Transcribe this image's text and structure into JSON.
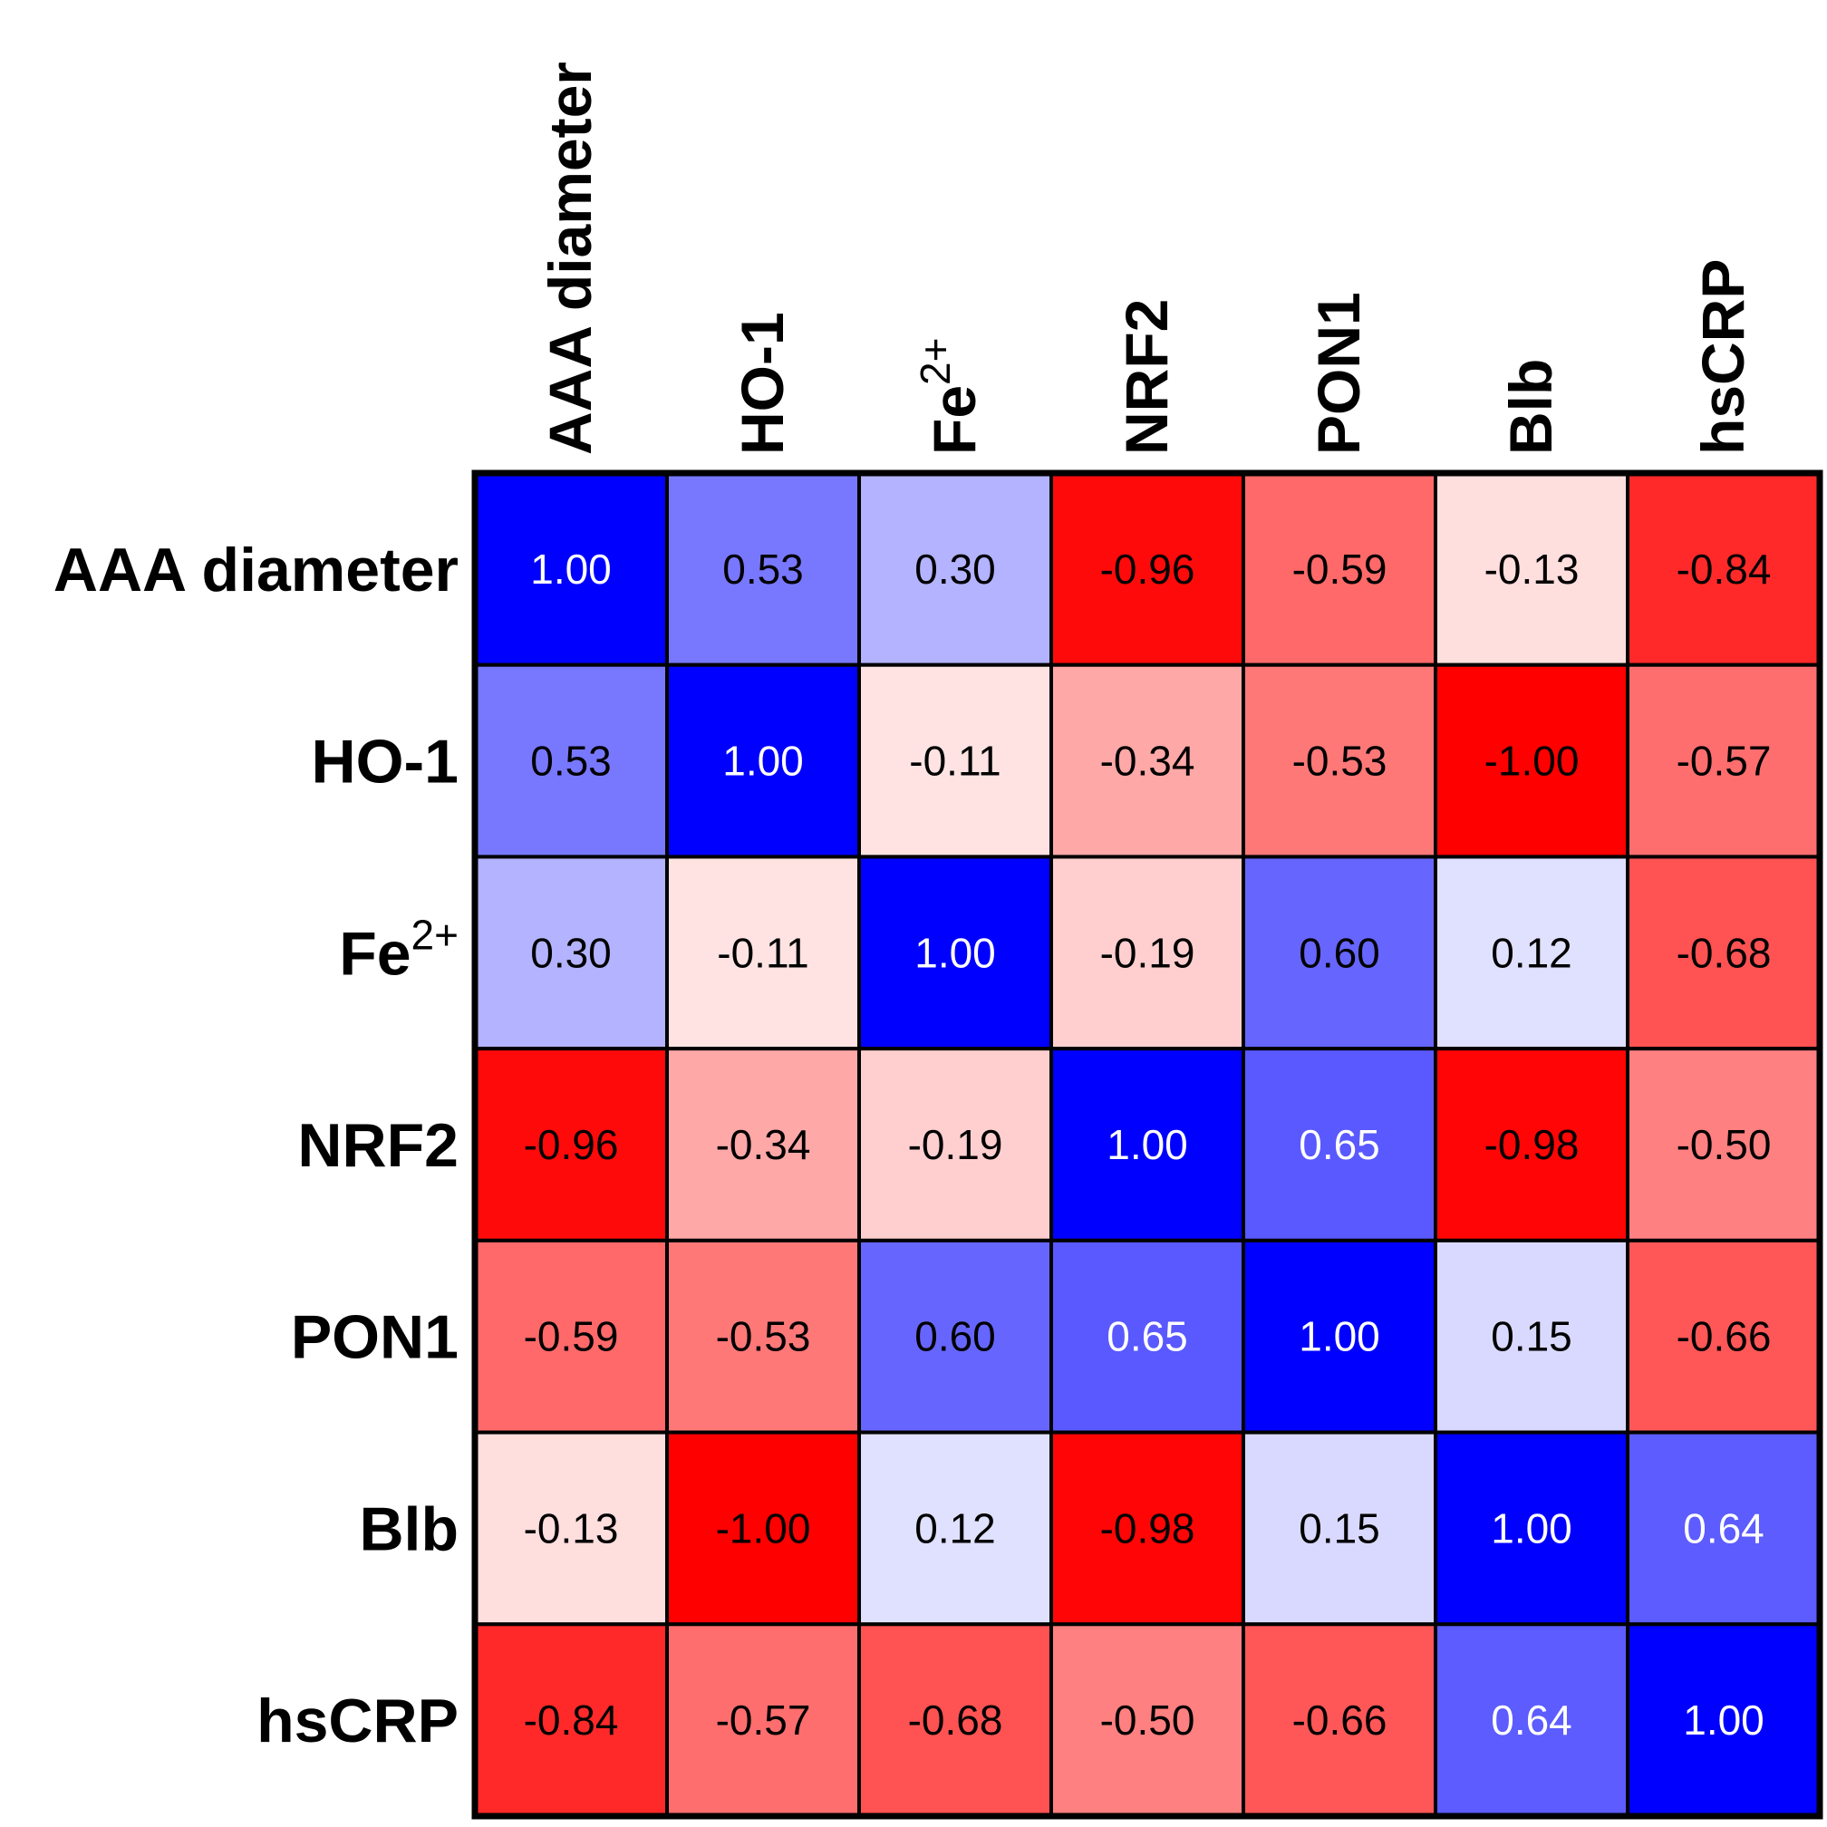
{
  "chart_data": {
    "type": "heatmap",
    "title": "",
    "variables": [
      {
        "base": "AAA diameter",
        "sup": ""
      },
      {
        "base": "HO-1",
        "sup": ""
      },
      {
        "base": "Fe",
        "sup": "2+"
      },
      {
        "base": "NRF2",
        "sup": ""
      },
      {
        "base": "PON1",
        "sup": ""
      },
      {
        "base": "Blb",
        "sup": ""
      },
      {
        "base": "hsCRP",
        "sup": ""
      }
    ],
    "matrix": [
      [
        1.0,
        0.53,
        0.3,
        -0.96,
        -0.59,
        -0.13,
        -0.84
      ],
      [
        0.53,
        1.0,
        -0.11,
        -0.34,
        -0.53,
        -1.0,
        -0.57
      ],
      [
        0.3,
        -0.11,
        1.0,
        -0.19,
        0.6,
        0.12,
        -0.68
      ],
      [
        -0.96,
        -0.34,
        -0.19,
        1.0,
        0.65,
        -0.98,
        -0.5
      ],
      [
        -0.59,
        -0.53,
        0.6,
        0.65,
        1.0,
        0.15,
        -0.66
      ],
      [
        -0.13,
        -1.0,
        0.12,
        -0.98,
        0.15,
        1.0,
        0.64
      ],
      [
        -0.84,
        -0.57,
        -0.68,
        -0.5,
        -0.66,
        0.64,
        1.0
      ]
    ],
    "value_range": [
      -1,
      1
    ],
    "colors": {
      "positive": "#0000ff",
      "negative": "#ff0000",
      "neutral": "#ffffff",
      "text_dark": "#000000",
      "text_light": "#ffffff"
    }
  }
}
